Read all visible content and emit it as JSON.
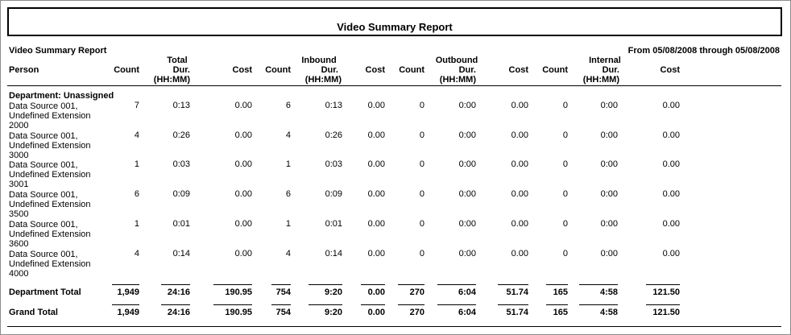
{
  "report": {
    "title": "Video Summary Report",
    "subtitle": "Video Summary Report",
    "date_range": "From 05/08/2008 through 05/08/2008"
  },
  "columns": {
    "person": "Person",
    "count": "Count",
    "total_dur": [
      "Total",
      "Dur.",
      "(HH:MM)"
    ],
    "cost": "Cost",
    "inbound_dur": [
      "Inbound",
      "Dur.",
      "(HH:MM)"
    ],
    "outbound_dur": [
      "Outbound",
      "Dur.",
      "(HH:MM)"
    ],
    "internal_dur": [
      "Internal",
      "Dur.",
      "(HH:MM)"
    ]
  },
  "department": {
    "label": "Department: Unassigned"
  },
  "rows": [
    {
      "person": [
        "Data Source 001,",
        "Undefined Extension",
        "2000"
      ],
      "v": [
        "7",
        "0:13",
        "0.00",
        "6",
        "0:13",
        "0.00",
        "0",
        "0:00",
        "0.00",
        "0",
        "0:00",
        "0.00"
      ]
    },
    {
      "person": [
        "Data Source 001,",
        "Undefined Extension",
        "3000"
      ],
      "v": [
        "4",
        "0:26",
        "0.00",
        "4",
        "0:26",
        "0.00",
        "0",
        "0:00",
        "0.00",
        "0",
        "0:00",
        "0.00"
      ]
    },
    {
      "person": [
        "Data Source 001,",
        "Undefined Extension",
        "3001"
      ],
      "v": [
        "1",
        "0:03",
        "0.00",
        "1",
        "0:03",
        "0.00",
        "0",
        "0:00",
        "0.00",
        "0",
        "0:00",
        "0.00"
      ]
    },
    {
      "person": [
        "Data Source 001,",
        "Undefined Extension",
        "3500"
      ],
      "v": [
        "6",
        "0:09",
        "0.00",
        "6",
        "0:09",
        "0.00",
        "0",
        "0:00",
        "0.00",
        "0",
        "0:00",
        "0.00"
      ]
    },
    {
      "person": [
        "Data Source 001,",
        "Undefined Extension",
        "3600"
      ],
      "v": [
        "1",
        "0:01",
        "0.00",
        "1",
        "0:01",
        "0.00",
        "0",
        "0:00",
        "0.00",
        "0",
        "0:00",
        "0.00"
      ]
    },
    {
      "person": [
        "Data Source 001,",
        "Undefined Extension",
        "4000"
      ],
      "v": [
        "4",
        "0:14",
        "0.00",
        "4",
        "0:14",
        "0.00",
        "0",
        "0:00",
        "0.00",
        "0",
        "0:00",
        "0.00"
      ]
    }
  ],
  "totals": [
    {
      "label": "Department Total",
      "v": [
        "1,949",
        "24:16",
        "190.95",
        "754",
        "9:20",
        "0.00",
        "270",
        "6:04",
        "51.74",
        "165",
        "4:58",
        "121.50"
      ]
    },
    {
      "label": "Grand Total",
      "v": [
        "1,949",
        "24:16",
        "190.95",
        "754",
        "9:20",
        "0.00",
        "270",
        "6:04",
        "51.74",
        "165",
        "4:58",
        "121.50"
      ]
    }
  ]
}
